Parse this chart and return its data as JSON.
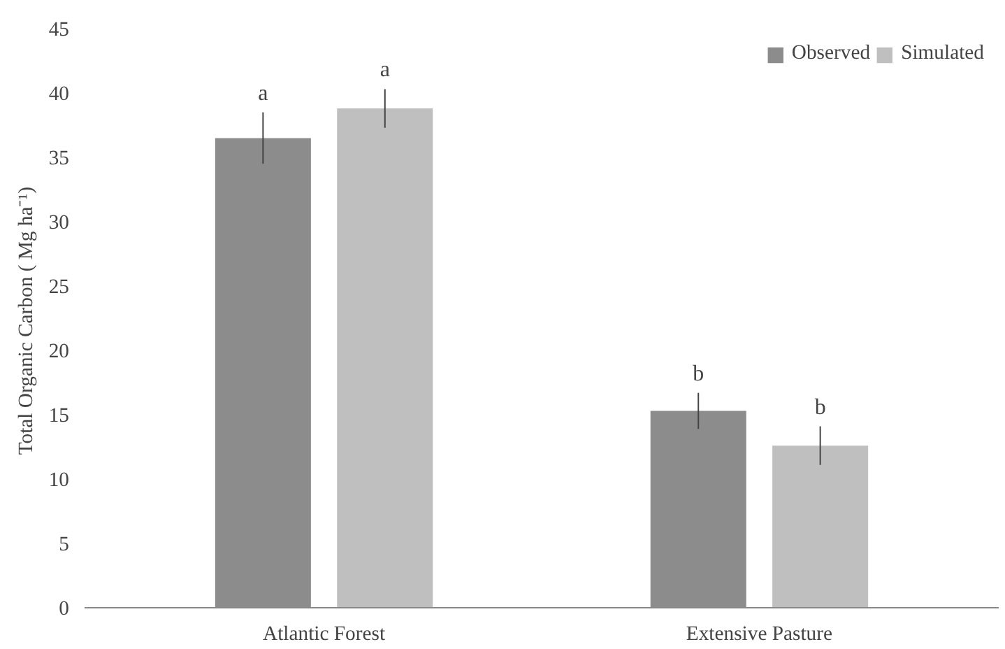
{
  "chart_data": {
    "type": "bar",
    "ylabel": "Total  Organic Carbon ( Mg ha⁻¹)",
    "categories": [
      "Atlantic Forest",
      "Extensive Pasture"
    ],
    "series": [
      {
        "name": "Observed",
        "color": "#8c8c8c",
        "values": [
          36.5,
          15.3
        ],
        "errors": [
          2.0,
          1.4
        ]
      },
      {
        "name": "Simulated",
        "color": "#bfbfbf",
        "values": [
          38.8,
          12.6
        ],
        "errors": [
          1.5,
          1.5
        ]
      }
    ],
    "annotations": [
      "a",
      "a",
      "b",
      "b"
    ],
    "ylim": [
      0,
      45
    ],
    "yticks": [
      0,
      5,
      10,
      15,
      20,
      25,
      30,
      35,
      40,
      45
    ],
    "grid": false,
    "legend": "top right"
  }
}
